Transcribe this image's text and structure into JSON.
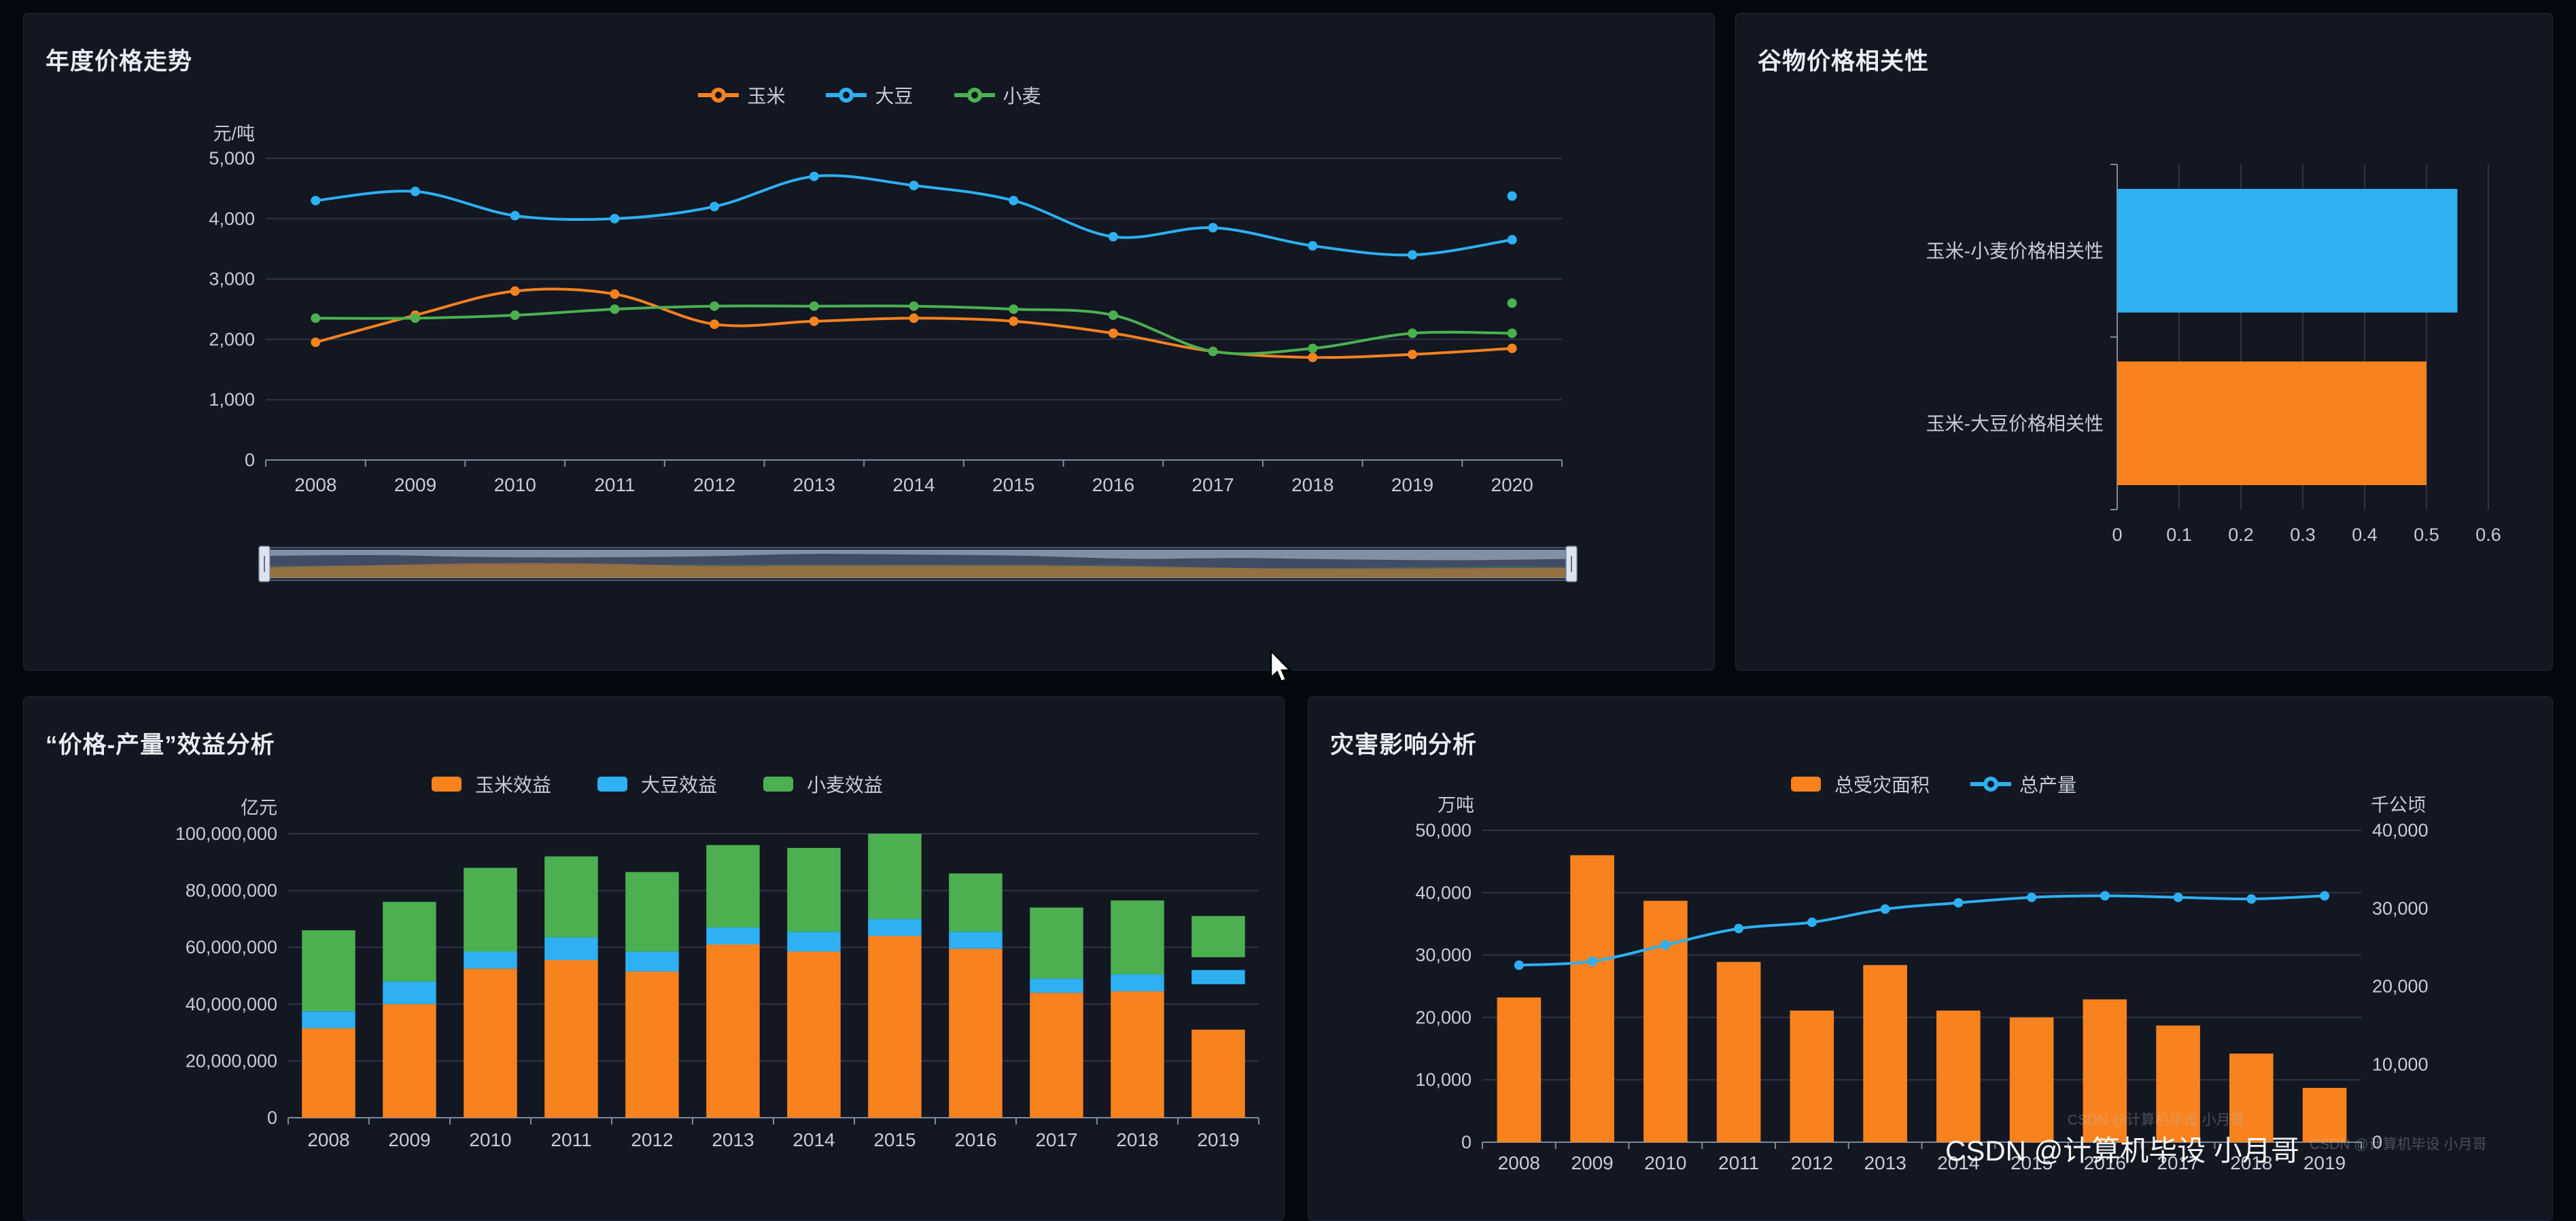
{
  "colors": {
    "corn": "#f8821e",
    "soybean": "#2eb0f2",
    "wheat": "#4cb050",
    "axis_text": "#c6cdd8",
    "grid": "#2e3547",
    "axis_line": "#7f8aa0",
    "panel_bg": "#121722",
    "page_bg": "#05080f",
    "title_text": "#e9edf5"
  },
  "watermarks": {
    "main": "CSDN @计算机毕设 小月哥",
    "small": "CSDN @计算机毕设 小月哥"
  },
  "chart_data": [
    {
      "id": "price-trend",
      "type": "line",
      "title": "年度价格走势",
      "ylabel": "元/吨",
      "legend": [
        {
          "name": "玉米",
          "color": "corn",
          "icon": "line"
        },
        {
          "name": "大豆",
          "color": "soybean",
          "icon": "line"
        },
        {
          "name": "小麦",
          "color": "wheat",
          "icon": "line"
        }
      ],
      "categories": [
        "2008",
        "2009",
        "2010",
        "2011",
        "2012",
        "2013",
        "2014",
        "2015",
        "2016",
        "2017",
        "2018",
        "2019",
        "2020"
      ],
      "series": [
        {
          "name": "玉米",
          "color": "corn",
          "values": [
            1950,
            2400,
            2800,
            2750,
            2250,
            2300,
            2350,
            2300,
            2100,
            1800,
            1700,
            1750,
            1850
          ]
        },
        {
          "name": "大豆",
          "color": "soybean",
          "values": [
            4300,
            4450,
            4050,
            4000,
            4200,
            4700,
            4550,
            4300,
            3700,
            3850,
            3550,
            3400,
            3650
          ]
        },
        {
          "name": "小麦",
          "color": "wheat",
          "values": [
            2350,
            2350,
            2400,
            2500,
            2550,
            2550,
            2550,
            2500,
            2400,
            1800,
            1850,
            2100,
            2100
          ]
        }
      ],
      "extra_points": [
        {
          "series": "大豆",
          "color": "soybean",
          "category": "2020",
          "value": 4375
        },
        {
          "series": "小麦",
          "color": "wheat",
          "category": "2020",
          "value": 2600
        }
      ],
      "ylim": [
        0,
        5000
      ],
      "yticks": [
        "0",
        "1,000",
        "2,000",
        "3,000",
        "4,000",
        "5,000"
      ],
      "datazoom": true,
      "grid": true,
      "legend_position": "top-center"
    },
    {
      "id": "correlation",
      "type": "bar",
      "orientation": "horizontal",
      "title": "谷物价格相关性",
      "categories": [
        "玉米-小麦价格相关性",
        "玉米-大豆价格相关性"
      ],
      "values": [
        0.55,
        0.5
      ],
      "bar_colors": [
        "soybean",
        "corn"
      ],
      "xlim": [
        0,
        0.6
      ],
      "xticks": [
        "0",
        "0.1",
        "0.2",
        "0.3",
        "0.4",
        "0.5",
        "0.6"
      ],
      "grid": true
    },
    {
      "id": "benefit",
      "type": "bar",
      "stacked": true,
      "title": "“价格-产量”效益分析",
      "ylabel": "亿元",
      "legend": [
        {
          "name": "玉米效益",
          "color": "corn",
          "icon": "rect"
        },
        {
          "name": "大豆效益",
          "color": "soybean",
          "icon": "rect"
        },
        {
          "name": "小麦效益",
          "color": "wheat",
          "icon": "rect"
        }
      ],
      "categories": [
        "2008",
        "2009",
        "2010",
        "2011",
        "2012",
        "2013",
        "2014",
        "2015",
        "2016",
        "2017",
        "2018",
        "2019"
      ],
      "series": [
        {
          "name": "玉米效益",
          "color": "corn",
          "values": [
            31500000,
            40000000,
            52500000,
            55500000,
            51500000,
            61000000,
            58500000,
            64000000,
            59500000,
            44000000,
            44500000,
            31000000
          ]
        },
        {
          "name": "大豆效益",
          "color": "soybean",
          "values": [
            6000000,
            8000000,
            6000000,
            8000000,
            7000000,
            6000000,
            7000000,
            6000000,
            6000000,
            5000000,
            6000000,
            5000000
          ],
          "offsets": [
            0,
            0,
            0,
            0,
            0,
            0,
            0,
            0,
            0,
            0,
            0,
            16000000
          ]
        },
        {
          "name": "小麦效益",
          "color": "wheat",
          "values": [
            28500000,
            28000000,
            29500000,
            28500000,
            28000000,
            29000000,
            29500000,
            30000000,
            20500000,
            25000000,
            26000000,
            14500000
          ],
          "offsets": [
            0,
            0,
            0,
            0,
            0,
            0,
            0,
            0,
            0,
            0,
            0,
            4500000
          ]
        }
      ],
      "ylim": [
        0,
        100000000
      ],
      "yticks": [
        "0",
        "20,000,000",
        "40,000,000",
        "60,000,000",
        "80,000,000",
        "100,000,000"
      ],
      "grid": true,
      "legend_position": "top-center"
    },
    {
      "id": "disaster",
      "type": "bar+line",
      "title": "灾害影响分析",
      "ylabel_left": "万吨",
      "ylabel_right": "千公顷",
      "legend": [
        {
          "name": "总受灾面积",
          "color": "corn",
          "icon": "rect"
        },
        {
          "name": "总产量",
          "color": "soybean",
          "icon": "line"
        }
      ],
      "categories": [
        "2008",
        "2009",
        "2010",
        "2011",
        "2012",
        "2013",
        "2014",
        "2015",
        "2016",
        "2017",
        "2018",
        "2019"
      ],
      "bar_series": {
        "name": "总受灾面积",
        "color": "corn",
        "axis": "left",
        "values": [
          23200,
          46000,
          38700,
          28900,
          21100,
          28400,
          21100,
          20000,
          22900,
          18700,
          14200,
          8700
        ]
      },
      "line_series": {
        "name": "总产量",
        "color": "soybean",
        "axis": "right",
        "values": [
          22700,
          23200,
          25300,
          27400,
          28200,
          29900,
          30700,
          31400,
          31600,
          31400,
          31200,
          31600
        ]
      },
      "ylim_left": [
        0,
        50000
      ],
      "ylim_right": [
        0,
        40000
      ],
      "yticks_left": [
        "0",
        "10,000",
        "20,000",
        "30,000",
        "40,000",
        "50,000"
      ],
      "yticks_right": [
        "0",
        "10,000",
        "20,000",
        "30,000",
        "40,000"
      ],
      "grid": true,
      "legend_position": "top-center"
    }
  ]
}
